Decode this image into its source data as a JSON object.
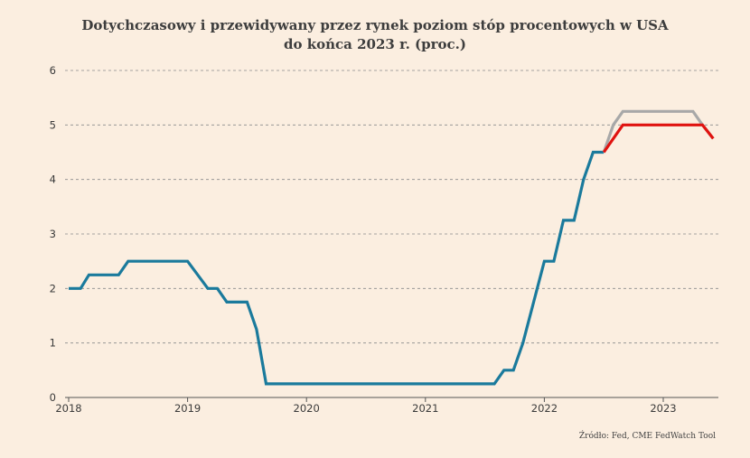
{
  "chart_data": {
    "type": "line",
    "title_line1": "Dotychczasowy i przewidywany przez rynek poziom stóp procentowych w USA",
    "title_line2": "do końca 2023 r. (proc.)",
    "ylim": [
      0,
      6
    ],
    "yticks": [
      0,
      1,
      2,
      3,
      4,
      5,
      6
    ],
    "xlim": [
      2018.0,
      2023.45
    ],
    "xticks": [
      {
        "label": "2018",
        "value": 2018
      },
      {
        "label": "2019",
        "value": 2019
      },
      {
        "label": "2020",
        "value": 2020
      },
      {
        "label": "2021",
        "value": 2021
      },
      {
        "label": "2022",
        "value": 2022
      },
      {
        "label": "2023",
        "value": 2023
      }
    ],
    "grid": "horizontal-dashed",
    "series": [
      {
        "color": "#1a7a9c",
        "points": [
          [
            2018.0,
            2.0
          ],
          [
            2018.1,
            2.0
          ],
          [
            2018.17,
            2.25
          ],
          [
            2018.42,
            2.25
          ],
          [
            2018.5,
            2.5
          ],
          [
            2019.0,
            2.5
          ],
          [
            2019.17,
            2.0
          ],
          [
            2019.25,
            2.0
          ],
          [
            2019.33,
            1.75
          ],
          [
            2019.5,
            1.75
          ],
          [
            2019.58,
            1.25
          ],
          [
            2019.66,
            0.25
          ],
          [
            2021.58,
            0.25
          ],
          [
            2021.66,
            0.5
          ],
          [
            2021.74,
            0.5
          ],
          [
            2021.82,
            1.0
          ],
          [
            2022.0,
            2.5
          ],
          [
            2022.08,
            2.5
          ],
          [
            2022.16,
            3.25
          ],
          [
            2022.25,
            3.25
          ],
          [
            2022.33,
            4.0
          ],
          [
            2022.41,
            4.5
          ],
          [
            2022.5,
            4.5
          ]
        ]
      },
      {
        "color": "#a8a8a8",
        "points": [
          [
            2022.5,
            4.5
          ],
          [
            2022.58,
            5.0
          ],
          [
            2022.66,
            5.25
          ],
          [
            2023.25,
            5.25
          ],
          [
            2023.33,
            5.0
          ],
          [
            2023.42,
            4.75
          ]
        ]
      },
      {
        "color": "#e0120f",
        "points": [
          [
            2022.5,
            4.5
          ],
          [
            2022.66,
            5.0
          ],
          [
            2023.33,
            5.0
          ],
          [
            2023.42,
            4.75
          ]
        ]
      }
    ],
    "source": "Źródło: Fed, CME FedWatch Tool"
  }
}
